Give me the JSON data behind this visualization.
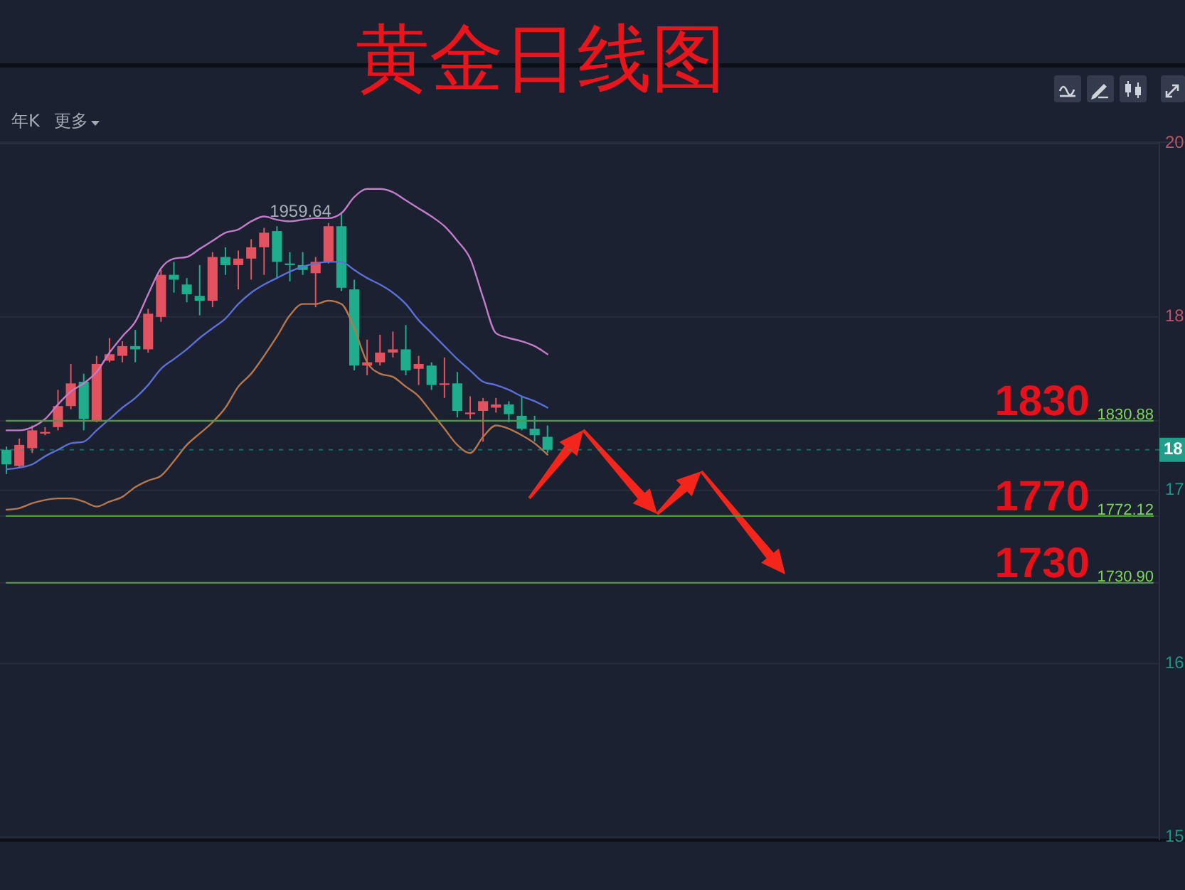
{
  "chart_data": {
    "type": "candlestick",
    "title": "黄金日线图",
    "categories": [
      null,
      null,
      null,
      null,
      null,
      null,
      null,
      null,
      null,
      null,
      null,
      null,
      null,
      null,
      null,
      null,
      null,
      null,
      null,
      null,
      null,
      null,
      null,
      null,
      null,
      null,
      null,
      null,
      null,
      null,
      null,
      null,
      null,
      null,
      null,
      null,
      null,
      null,
      null,
      null,
      null,
      null,
      null,
      null,
      null,
      null,
      null,
      null,
      null,
      null,
      null,
      null,
      null,
      null,
      null,
      null,
      null,
      null,
      null,
      null,
      null,
      null,
      null,
      null,
      null,
      null,
      null,
      null,
      null,
      null,
      null,
      null,
      null,
      null,
      null,
      null,
      null,
      null,
      null,
      null,
      null,
      null,
      null,
      null,
      null,
      null,
      null,
      null,
      null,
      null
    ],
    "ohlc": [
      [
        1813,
        1815,
        1798,
        1804
      ],
      [
        1803,
        1820,
        1802,
        1816
      ],
      [
        1814,
        1828,
        1811,
        1825
      ],
      [
        1823,
        1827,
        1822,
        1824
      ],
      [
        1827,
        1850,
        1825,
        1840
      ],
      [
        1840,
        1866,
        1838,
        1854
      ],
      [
        1855,
        1860,
        1825,
        1832
      ],
      [
        1831,
        1871,
        1830,
        1866
      ],
      [
        1868,
        1882,
        1867,
        1872
      ],
      [
        1871,
        1880,
        1867,
        1877
      ],
      [
        1877,
        1887,
        1867,
        1875
      ],
      [
        1875,
        1900,
        1873,
        1897
      ],
      [
        1895,
        1924,
        1892,
        1921
      ],
      [
        1921,
        1929,
        1910,
        1918
      ],
      [
        1915,
        1919,
        1904,
        1909
      ],
      [
        1908,
        1927,
        1896,
        1905
      ],
      [
        1905,
        1935,
        1901,
        1932
      ],
      [
        1932,
        1938,
        1921,
        1927
      ],
      [
        1927,
        1936,
        1912,
        1931
      ],
      [
        1931,
        1943,
        1918,
        1938
      ],
      [
        1938,
        1950,
        1921,
        1947
      ],
      [
        1948,
        1951,
        1919,
        1929
      ],
      [
        1928,
        1935,
        1917,
        1927
      ],
      [
        1927,
        1935,
        1921,
        1924
      ],
      [
        1922,
        1932,
        1901,
        1929
      ],
      [
        1929,
        1953,
        1928,
        1951
      ],
      [
        1951,
        1959.64,
        1911,
        1913
      ],
      [
        1912,
        1918,
        1862,
        1865
      ],
      [
        1865,
        1881,
        1859,
        1867
      ],
      [
        1867,
        1884,
        1865,
        1873
      ],
      [
        1873,
        1886,
        1870,
        1875
      ],
      [
        1875,
        1890,
        1859,
        1862
      ],
      [
        1863,
        1871,
        1853,
        1866
      ],
      [
        1865,
        1867,
        1850,
        1853
      ],
      [
        1853,
        1870,
        1845,
        1854
      ],
      [
        1854,
        1861,
        1833,
        1837
      ],
      [
        1835,
        1846,
        1832,
        1836
      ],
      [
        1837,
        1845,
        1818,
        1843
      ],
      [
        1839,
        1845,
        1836,
        1841
      ],
      [
        1841,
        1843,
        1830,
        1835
      ],
      [
        1834,
        1846,
        1825,
        1826
      ],
      [
        1826,
        1834,
        1818,
        1822
      ],
      [
        1821,
        1828,
        1811,
        1813
      ],
      null,
      null,
      null,
      null,
      null,
      null,
      null,
      null,
      null,
      null,
      null,
      null,
      null,
      null,
      null,
      null,
      null,
      null,
      null,
      null,
      null,
      null,
      null,
      null,
      null,
      null,
      null,
      null,
      null,
      null,
      null,
      null,
      null,
      null,
      null,
      null,
      null,
      null,
      null,
      null,
      null,
      null,
      null,
      null,
      null,
      null,
      null
    ],
    "colors": [
      "#1eae8d",
      "#e2525f",
      "#e2525f",
      "#e2525f",
      "#e2525f",
      "#e2525f",
      "#1eae8d",
      "#e2525f",
      "#e2525f",
      "#e2525f",
      "#1eae8d",
      "#e2525f",
      "#e2525f",
      "#1eae8d",
      "#1eae8d",
      "#1eae8d",
      "#e2525f",
      "#1eae8d",
      "#e2525f",
      "#e2525f",
      "#e2525f",
      "#1eae8d",
      "#1eae8d",
      "#1eae8d",
      "#e2525f",
      "#e2525f",
      "#1eae8d",
      "#1eae8d",
      "#e2525f",
      "#e2525f",
      "#e2525f",
      "#1eae8d",
      "#e2525f",
      "#1eae8d",
      "#e2525f",
      "#1eae8d",
      "#e2525f",
      "#e2525f",
      "#e2525f",
      "#1eae8d",
      "#1eae8d",
      "#1eae8d",
      "#1eae8d",
      null,
      null,
      null,
      null,
      null,
      null,
      null,
      null,
      null,
      null,
      null,
      null,
      null,
      null,
      null,
      null,
      null,
      null,
      null,
      null,
      null,
      null,
      null,
      null,
      null,
      null,
      null,
      null,
      null,
      null,
      null,
      null,
      null,
      null,
      null,
      null,
      null,
      null,
      null,
      null,
      null,
      null,
      null,
      null,
      null,
      null,
      null
    ],
    "value_labels": [
      null,
      null,
      null,
      null,
      null,
      null,
      null,
      null,
      null,
      null,
      null,
      null,
      null,
      null,
      null,
      null,
      null,
      null,
      null,
      null,
      null,
      null,
      null,
      null,
      null,
      null,
      "1959.64",
      null,
      null,
      null,
      null,
      null,
      null,
      null,
      null,
      null,
      null,
      null,
      null,
      null,
      null,
      null,
      null,
      null,
      null,
      null,
      null,
      null,
      null,
      null,
      null,
      null,
      null,
      null,
      null,
      null,
      null,
      null,
      null,
      null,
      null,
      null,
      null,
      null,
      null,
      null,
      null,
      null,
      null,
      null,
      null,
      null,
      null,
      null,
      null,
      null,
      null,
      null,
      null,
      null,
      null,
      null,
      null,
      null,
      null,
      null,
      null,
      null,
      null,
      null
    ],
    "series": [
      {
        "type": "line",
        "color": "#c47cc8",
        "values": [
          1825,
          1825,
          1827,
          1832,
          1841,
          1849,
          1854,
          1861,
          1873,
          1883,
          1892,
          1909,
          1925,
          1931,
          1932,
          1937,
          1942,
          1947,
          1949,
          1954,
          1957,
          1955,
          1954,
          1955,
          1956,
          1956,
          1959,
          1969,
          1974,
          1974,
          1972,
          1967,
          1962,
          1957,
          1951,
          1942,
          1931,
          1907,
          1885,
          1882,
          1880,
          1877,
          1872,
          null,
          null,
          null,
          null,
          null,
          null,
          null,
          null,
          null,
          null,
          null,
          null,
          null,
          null,
          null,
          null,
          null,
          null,
          null,
          null,
          null,
          null,
          null,
          null,
          null,
          null,
          null,
          null,
          null,
          null,
          null,
          null,
          null,
          null,
          null,
          null,
          null,
          null,
          null,
          null,
          null,
          null,
          null,
          null,
          null,
          null,
          null
        ]
      },
      {
        "type": "line",
        "color": "#5b6fd6",
        "values": [
          1801,
          1802,
          1804,
          1809,
          1813,
          1817,
          1818,
          1825,
          1832,
          1839,
          1845,
          1853,
          1863,
          1869,
          1875,
          1882,
          1888,
          1894,
          1903,
          1910,
          1915,
          1919,
          1923,
          1926,
          1928,
          1929,
          1929,
          1924,
          1919,
          1915,
          1910,
          1903,
          1893,
          1885,
          1877,
          1869,
          1862,
          1855,
          1853,
          1850,
          1846,
          1843,
          1839,
          null,
          null,
          null,
          null,
          null,
          null,
          null,
          null,
          null,
          null,
          null,
          null,
          null,
          null,
          null,
          null,
          null,
          null,
          null,
          null,
          null,
          null,
          null,
          null,
          null,
          null,
          null,
          null,
          null,
          null,
          null,
          null,
          null,
          null,
          null,
          null,
          null,
          null,
          null,
          null,
          null,
          null,
          null,
          null,
          null,
          null,
          null
        ]
      },
      {
        "type": "line",
        "color": "#b8764c",
        "values": [
          1776,
          1777,
          1780,
          1782,
          1783,
          1783,
          1781,
          1778,
          1781,
          1784,
          1790,
          1794,
          1797,
          1806,
          1816,
          1823,
          1830,
          1839,
          1852,
          1860,
          1871,
          1883,
          1896,
          1903,
          1903,
          1905,
          1903,
          1888,
          1867,
          1860,
          1858,
          1852,
          1846,
          1836,
          1826,
          1816,
          1811,
          1821,
          1828,
          1826,
          1822,
          1817,
          1810,
          null,
          null,
          null,
          null,
          null,
          null,
          null,
          null,
          null,
          null,
          null,
          null,
          null,
          null,
          null,
          null,
          null,
          null,
          null,
          null,
          null,
          null,
          null,
          null,
          null,
          null,
          null,
          null,
          null,
          null,
          null,
          null,
          null,
          null,
          null,
          null,
          null,
          null,
          null,
          null,
          null,
          null,
          null,
          null,
          null,
          null,
          null
        ]
      },
      {
        "type": "line",
        "color": "#4f9a3b",
        "values": [
          1830.88,
          1830.88,
          1830.88,
          1830.88,
          1830.88,
          1830.88,
          1830.88,
          1830.88,
          1830.88,
          1830.88,
          1830.88,
          1830.88,
          1830.88,
          1830.88,
          1830.88,
          1830.88,
          1830.88,
          1830.88,
          1830.88,
          1830.88,
          1830.88,
          1830.88,
          1830.88,
          1830.88,
          1830.88,
          1830.88,
          1830.88,
          1830.88,
          1830.88,
          1830.88,
          1830.88,
          1830.88,
          1830.88,
          1830.88,
          1830.88,
          1830.88,
          1830.88,
          1830.88,
          1830.88,
          1830.88,
          1830.88,
          1830.88,
          1830.88,
          1830.88,
          1830.88,
          1830.88,
          1830.88,
          1830.88,
          1830.88,
          1830.88,
          1830.88,
          1830.88,
          1830.88,
          1830.88,
          1830.88,
          1830.88,
          1830.88,
          1830.88,
          1830.88,
          1830.88,
          1830.88,
          1830.88,
          1830.88,
          1830.88,
          1830.88,
          1830.88,
          1830.88,
          1830.88,
          1830.88,
          1830.88,
          1830.88,
          1830.88,
          1830.88,
          1830.88,
          1830.88,
          1830.88,
          1830.88,
          1830.88,
          1830.88,
          1830.88,
          1830.88,
          1830.88,
          1830.88,
          1830.88,
          1830.88,
          1830.88,
          1830.88,
          1830.88,
          1830.88,
          1830.88
        ]
      },
      {
        "type": "line",
        "color": "#4f9a3b",
        "values": [
          1772.12,
          1772.12,
          1772.12,
          1772.12,
          1772.12,
          1772.12,
          1772.12,
          1772.12,
          1772.12,
          1772.12,
          1772.12,
          1772.12,
          1772.12,
          1772.12,
          1772.12,
          1772.12,
          1772.12,
          1772.12,
          1772.12,
          1772.12,
          1772.12,
          1772.12,
          1772.12,
          1772.12,
          1772.12,
          1772.12,
          1772.12,
          1772.12,
          1772.12,
          1772.12,
          1772.12,
          1772.12,
          1772.12,
          1772.12,
          1772.12,
          1772.12,
          1772.12,
          1772.12,
          1772.12,
          1772.12,
          1772.12,
          1772.12,
          1772.12,
          1772.12,
          1772.12,
          1772.12,
          1772.12,
          1772.12,
          1772.12,
          1772.12,
          1772.12,
          1772.12,
          1772.12,
          1772.12,
          1772.12,
          1772.12,
          1772.12,
          1772.12,
          1772.12,
          1772.12,
          1772.12,
          1772.12,
          1772.12,
          1772.12,
          1772.12,
          1772.12,
          1772.12,
          1772.12,
          1772.12,
          1772.12,
          1772.12,
          1772.12,
          1772.12,
          1772.12,
          1772.12,
          1772.12,
          1772.12,
          1772.12,
          1772.12,
          1772.12,
          1772.12,
          1772.12,
          1772.12,
          1772.12,
          1772.12,
          1772.12,
          1772.12,
          1772.12,
          1772.12,
          1772.12
        ]
      },
      {
        "type": "line",
        "color": "#4f9a3b",
        "values": [
          1730.9,
          1730.9,
          1730.9,
          1730.9,
          1730.9,
          1730.9,
          1730.9,
          1730.9,
          1730.9,
          1730.9,
          1730.9,
          1730.9,
          1730.9,
          1730.9,
          1730.9,
          1730.9,
          1730.9,
          1730.9,
          1730.9,
          1730.9,
          1730.9,
          1730.9,
          1730.9,
          1730.9,
          1730.9,
          1730.9,
          1730.9,
          1730.9,
          1730.9,
          1730.9,
          1730.9,
          1730.9,
          1730.9,
          1730.9,
          1730.9,
          1730.9,
          1730.9,
          1730.9,
          1730.9,
          1730.9,
          1730.9,
          1730.9,
          1730.9,
          1730.9,
          1730.9,
          1730.9,
          1730.9,
          1730.9,
          1730.9,
          1730.9,
          1730.9,
          1730.9,
          1730.9,
          1730.9,
          1730.9,
          1730.9,
          1730.9,
          1730.9,
          1730.9,
          1730.9,
          1730.9,
          1730.9,
          1730.9,
          1730.9,
          1730.9,
          1730.9,
          1730.9,
          1730.9,
          1730.9,
          1730.9,
          1730.9,
          1730.9,
          1730.9,
          1730.9,
          1730.9,
          1730.9,
          1730.9,
          1730.9,
          1730.9,
          1730.9,
          1730.9,
          1730.9,
          1730.9,
          1730.9,
          1730.9,
          1730.9,
          1730.9,
          1730.9,
          1730.9,
          1730.9
        ]
      }
    ],
    "ylim": [
      1572,
      2002
    ],
    "yticks": [
      {
        "value": 2002,
        "label": null
      },
      {
        "value": 1895,
        "label": null
      },
      {
        "value": 1830.88,
        "label": "1830.88"
      },
      {
        "value": 1788,
        "label": null
      },
      {
        "value": 1772.12,
        "label": "1772.12"
      },
      {
        "value": 1730.9,
        "label": "1730.90"
      },
      {
        "value": 1681,
        "label": null
      },
      {
        "value": 1574,
        "label": null
      }
    ],
    "grid": "y",
    "ref_lines": [
      {
        "axis": "y",
        "value": 1813,
        "color": "#1f9e89",
        "line_style": "dashed"
      }
    ],
    "annotations": [
      {
        "text": "1830",
        "y": 1830.88
      },
      {
        "text": "1770",
        "y": 1772.12
      },
      {
        "text": "1730",
        "y": 1730.9
      },
      {
        "text": "18",
        "y": 1813
      },
      "年K",
      "更多",
      "20",
      "18",
      "17",
      "16",
      "15"
    ]
  }
}
